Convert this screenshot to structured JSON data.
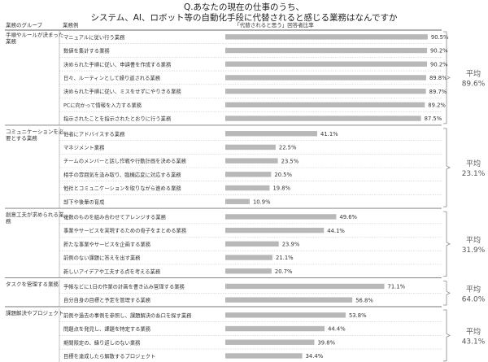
{
  "chart_data": {
    "type": "bar",
    "title_line1": "Q.あなたの現在の仕事のうち、",
    "title_line2": "システム、AI、ロボット等の自動化手段に代替されると感じる業務はなんですか",
    "header_group": "業務のグループ",
    "header_example": "業務例",
    "header_value": "「代替されると思う」回答者比率",
    "xlim": [
      0,
      100
    ],
    "value_suffix": "%",
    "groups": [
      {
        "name": "手順やルールが決まった業務",
        "average_label": "平均",
        "average_value": "89.6%",
        "items": [
          {
            "label": "マニュアルに従い行う業務",
            "value": 90.5
          },
          {
            "label": "数値を集計する業務",
            "value": 90.2
          },
          {
            "label": "決められた手順に従い、申請書を作成する業務",
            "value": 90.2
          },
          {
            "label": "日々、ルーティンとして繰り返される業務",
            "value": 89.8
          },
          {
            "label": "決められた手順に従い、ミスをせずにやりきる業務",
            "value": 89.7
          },
          {
            "label": "PCに向かって情報を入力する業務",
            "value": 89.2
          },
          {
            "label": "指示されたことを指示されたとおりに行う業務",
            "value": 87.5
          }
        ]
      },
      {
        "name": "コミュニケーションを必要とする業務",
        "average_label": "平均",
        "average_value": "23.1%",
        "items": [
          {
            "label": "他者にアドバイスする業務",
            "value": 41.1
          },
          {
            "label": "マネジメント業務",
            "value": 22.5
          },
          {
            "label": "チームのメンバーと話し作戦や行動計画を決める業務",
            "value": 23.5
          },
          {
            "label": "相手の雰囲気を汲み取り、臨機応変に対応する業務",
            "value": 20.5
          },
          {
            "label": "他社とコミュニケーションを取りながら進める業務",
            "value": 19.8
          },
          {
            "label": "部下や後輩の育成",
            "value": 10.9
          }
        ]
      },
      {
        "name": "創意工夫が求められる業務",
        "average_label": "平均",
        "average_value": "31.9%",
        "items": [
          {
            "label": "複数のものを組み合わせてアレンジする業務",
            "value": 49.6
          },
          {
            "label": "事業やサービスを実現するための骨子をまとめる業務",
            "value": 44.1
          },
          {
            "label": "新たな事業やサービスを企画する業務",
            "value": 23.9
          },
          {
            "label": "前例のない課題に答えを出す業務",
            "value": 21.1
          },
          {
            "label": "新しいアイデアや工夫する点を考える業務",
            "value": 20.7
          }
        ]
      },
      {
        "name": "タスクを管理する業務",
        "average_label": "平均",
        "average_value": "64.0%",
        "items": [
          {
            "label": "手帳などに1日の作業の計画を書き込み管理する業務",
            "value": 71.1
          },
          {
            "label": "自分自身の目標と予定を管理する業務",
            "value": 56.8
          }
        ]
      },
      {
        "name": "課題解決やプロジェクト",
        "average_label": "平均",
        "average_value": "43.1%",
        "items": [
          {
            "label": "前例や過去の事例を参照し、課題解決の糸口を探す業務",
            "value": 53.8
          },
          {
            "label": "問題点を発見し、課題を特定する業務",
            "value": 44.4
          },
          {
            "label": "期間限定の、繰り返しのない業務",
            "value": 39.8
          },
          {
            "label": "目標を達成したら解散するプロジェクト",
            "value": 34.4
          }
        ]
      }
    ]
  }
}
